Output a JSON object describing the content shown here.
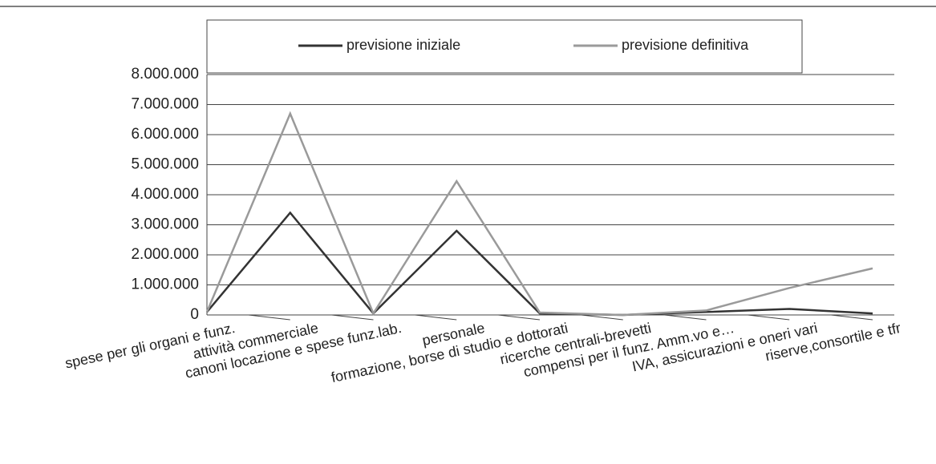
{
  "chart_data": {
    "type": "line",
    "categories": [
      "spese per gli organi e funz.",
      "attività commerciale",
      "canoni locazione e spese funz.lab.",
      "personale",
      "formazione, borse di studio e dottorati",
      "ricerche centrali-brevetti",
      "compensi per il funz. Amm.vo e…",
      "IVA, assicurazioni e oneri vari",
      "riserve,consortile e tfr"
    ],
    "series": [
      {
        "name": "previsione iniziale",
        "color": "#333333",
        "values": [
          100000,
          3400000,
          50000,
          2800000,
          50000,
          0,
          100000,
          200000,
          50000
        ]
      },
      {
        "name": "previsione definitiva",
        "color": "#9a9a9a",
        "values": [
          100000,
          6700000,
          50000,
          4450000,
          80000,
          0,
          150000,
          900000,
          1550000
        ]
      }
    ],
    "ylim": [
      0,
      8000000
    ],
    "yticks": [
      0,
      {
        "value": 1000000,
        "label": "1.000.000"
      },
      {
        "value": 2000000,
        "label": "2.000.000"
      },
      {
        "value": 3000000,
        "label": "3.000.000"
      },
      {
        "value": 4000000,
        "label": "4.000.000"
      },
      {
        "value": 5000000,
        "label": "5.000.000"
      },
      {
        "value": 6000000,
        "label": "6.000.000"
      },
      {
        "value": 7000000,
        "label": "7.000.000"
      },
      {
        "value": 8000000,
        "label": "8.000.000"
      }
    ],
    "grid": true,
    "legend": "top"
  }
}
